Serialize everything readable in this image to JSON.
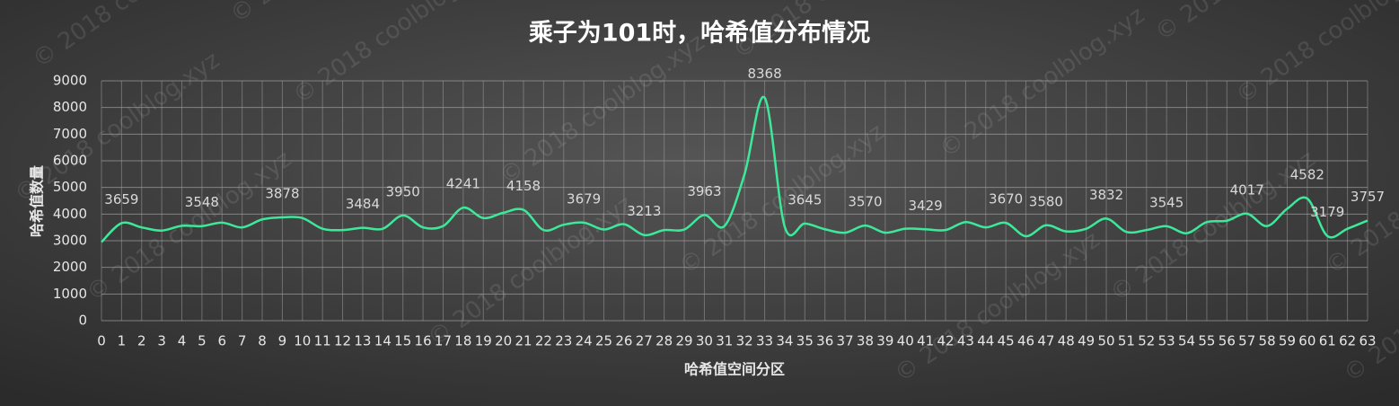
{
  "chart_data": {
    "type": "line",
    "title": "乘子为101时，哈希值分布情况",
    "x_label": "哈希值空间分区",
    "y_label": "哈希值数量",
    "watermark": "© 2018 coolblog.xyz",
    "categories": [
      "0",
      "1",
      "2",
      "3",
      "4",
      "5",
      "6",
      "7",
      "8",
      "9",
      "10",
      "11",
      "12",
      "13",
      "14",
      "15",
      "16",
      "17",
      "18",
      "19",
      "20",
      "21",
      "22",
      "23",
      "24",
      "25",
      "26",
      "27",
      "28",
      "29",
      "30",
      "31",
      "32",
      "33",
      "34",
      "35",
      "36",
      "37",
      "38",
      "39",
      "40",
      "41",
      "42",
      "43",
      "44",
      "45",
      "46",
      "47",
      "48",
      "49",
      "50",
      "51",
      "52",
      "53",
      "54",
      "55",
      "56",
      "57",
      "58",
      "59",
      "60",
      "61",
      "62",
      "63"
    ],
    "series": [
      {
        "name": "哈希值数量",
        "color": "#3ee89a",
        "values": [
          2950,
          3659,
          3500,
          3380,
          3560,
          3548,
          3680,
          3500,
          3800,
          3878,
          3850,
          3450,
          3400,
          3484,
          3450,
          3950,
          3500,
          3550,
          4241,
          3850,
          4050,
          4158,
          3400,
          3600,
          3679,
          3420,
          3620,
          3213,
          3400,
          3420,
          3963,
          3550,
          5500,
          8368,
          3520,
          3645,
          3430,
          3300,
          3570,
          3300,
          3450,
          3429,
          3400,
          3700,
          3500,
          3670,
          3170,
          3580,
          3350,
          3450,
          3832,
          3330,
          3400,
          3545,
          3280,
          3700,
          3750,
          4017,
          3550,
          4200,
          4582,
          3179,
          3450,
          3757
        ],
        "value_labels": [
          null,
          "3659",
          null,
          null,
          null,
          "3548",
          null,
          null,
          null,
          "3878",
          null,
          null,
          null,
          "3484",
          null,
          "3950",
          null,
          null,
          "4241",
          null,
          null,
          "4158",
          null,
          null,
          "3679",
          null,
          null,
          "3213",
          null,
          null,
          "3963",
          null,
          null,
          "8368",
          null,
          "3645",
          null,
          null,
          "3570",
          null,
          null,
          "3429",
          null,
          null,
          null,
          "3670",
          null,
          "3580",
          null,
          null,
          "3832",
          null,
          null,
          "3545",
          null,
          null,
          null,
          "4017",
          null,
          null,
          "4582",
          "3179",
          null,
          "3757"
        ]
      }
    ],
    "ylim": [
      0,
      9000
    ],
    "yticks": [
      0,
      1000,
      2000,
      3000,
      4000,
      5000,
      6000,
      7000,
      8000,
      9000
    ],
    "grid": true
  }
}
